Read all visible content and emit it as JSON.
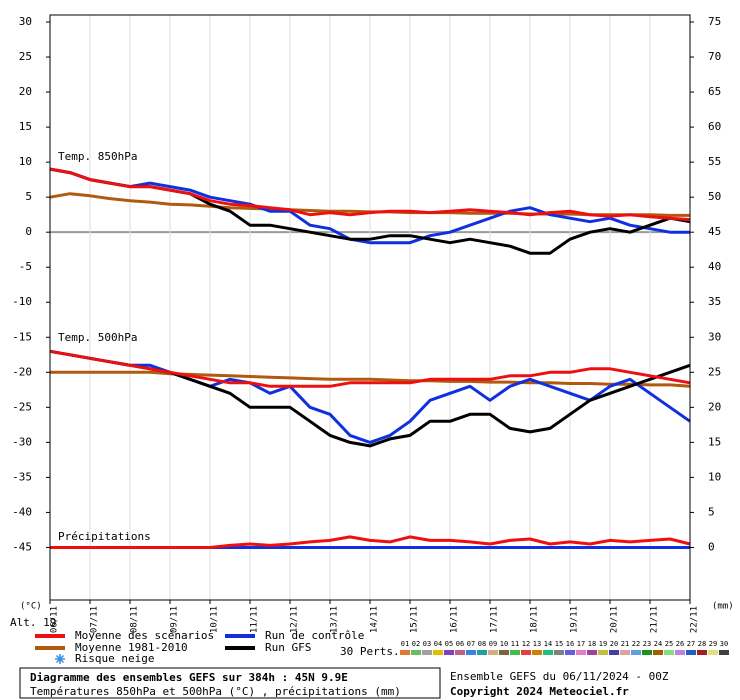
{
  "chart_data": {
    "type": "line",
    "axis_unit_left": "(°C)",
    "axis_unit_right": "(mm)",
    "altitude": "Alt. 19",
    "annotations": [
      "Temp. 850hPa",
      "Temp. 500hPa",
      "Précipitations"
    ],
    "xlim": [
      0,
      384
    ],
    "xticks": [
      {
        "value": 0,
        "label": "06/11"
      },
      {
        "value": 24,
        "label": "07/11"
      },
      {
        "value": 48,
        "label": "08/11"
      },
      {
        "value": 72,
        "label": "09/11"
      },
      {
        "value": 96,
        "label": "10/11"
      },
      {
        "value": 120,
        "label": "11/11"
      },
      {
        "value": 144,
        "label": "12/11"
      },
      {
        "value": 168,
        "label": "13/11"
      },
      {
        "value": 192,
        "label": "14/11"
      },
      {
        "value": 216,
        "label": "15/11"
      },
      {
        "value": 240,
        "label": "16/11"
      },
      {
        "value": 264,
        "label": "17/11"
      },
      {
        "value": 288,
        "label": "18/11"
      },
      {
        "value": 312,
        "label": "19/11"
      },
      {
        "value": 336,
        "label": "20/11"
      },
      {
        "value": 360,
        "label": "21/11"
      },
      {
        "value": 384,
        "label": "22/11"
      }
    ],
    "ylim": [
      -52.5,
      31
    ],
    "yticks": [
      30,
      25,
      20,
      15,
      10,
      5,
      0,
      -5,
      -10,
      -15,
      -20,
      -25,
      -30,
      -35,
      -40,
      -45
    ],
    "y2lim": [
      -7.5,
      76
    ],
    "y2ticks": [
      75,
      70,
      65,
      60,
      55,
      50,
      45,
      40,
      35,
      30,
      25,
      20,
      15,
      10,
      5,
      0
    ],
    "grid": true,
    "x": [
      0,
      12,
      24,
      36,
      48,
      60,
      72,
      84,
      96,
      108,
      120,
      132,
      144,
      156,
      168,
      180,
      192,
      204,
      216,
      228,
      240,
      252,
      264,
      276,
      288,
      300,
      312,
      324,
      336,
      348,
      360,
      372,
      384
    ],
    "series": [
      {
        "name": "Moyenne 1981-2010",
        "color": "#b05a10",
        "t850": [
          5,
          5.5,
          5.2,
          4.8,
          4.5,
          4.3,
          4,
          3.9,
          3.7,
          3.5,
          3.4,
          3.3,
          3.2,
          3.1,
          3,
          3,
          2.9,
          2.9,
          2.8,
          2.8,
          2.8,
          2.7,
          2.7,
          2.7,
          2.6,
          2.6,
          2.6,
          2.5,
          2.5,
          2.5,
          2.5,
          2.4,
          2.4
        ],
        "t500": [
          -20,
          -20,
          -20,
          -20,
          -20,
          -20,
          -20.2,
          -20.3,
          -20.4,
          -20.5,
          -20.6,
          -20.7,
          -20.8,
          -20.9,
          -21,
          -21,
          -21,
          -21.1,
          -21.2,
          -21.2,
          -21.3,
          -21.3,
          -21.4,
          -21.4,
          -21.5,
          -21.5,
          -21.6,
          -21.6,
          -21.7,
          -21.7,
          -21.8,
          -21.8,
          -22
        ]
      },
      {
        "name": "Run de contrôle",
        "color": "#1030e0",
        "t850": [
          9,
          8.5,
          7.5,
          7,
          6.5,
          7,
          6.5,
          6,
          5,
          4.5,
          4,
          3,
          3,
          1,
          0.5,
          -1,
          -1.5,
          -1.5,
          -1.5,
          -0.5,
          0,
          1,
          2,
          3,
          3.5,
          2.5,
          2,
          1.5,
          2,
          1,
          0.5,
          0,
          0
        ],
        "t500": [
          -17,
          -17.5,
          -18,
          -18.5,
          -19,
          -19,
          -20,
          -21,
          -22,
          -21,
          -21.5,
          -23,
          -22,
          -25,
          -26,
          -29,
          -30,
          -29,
          -27,
          -24,
          -23,
          -22,
          -24,
          -22,
          -21,
          -22,
          -23,
          -24,
          -22,
          -21,
          -23,
          -25,
          -27
        ],
        "precip": [
          0,
          0,
          0,
          0,
          0,
          0,
          0,
          0,
          0,
          0,
          0,
          0,
          0,
          0,
          0,
          0,
          0,
          0,
          0,
          0,
          0,
          0,
          0,
          0,
          0,
          0,
          0,
          0,
          0,
          0,
          0,
          0,
          0
        ]
      },
      {
        "name": "Run GFS",
        "color": "#000000",
        "t850": [
          9,
          8.5,
          7.5,
          7,
          6.5,
          6.5,
          6,
          5.5,
          4,
          3,
          1,
          1,
          0.5,
          0,
          -0.5,
          -1,
          -1,
          -0.5,
          -0.5,
          -1,
          -1.5,
          -1,
          -1.5,
          -2,
          -3,
          -3,
          -1,
          0,
          0.5,
          0,
          1,
          2,
          1.5
        ],
        "t500": [
          -17,
          -17.5,
          -18,
          -18.5,
          -19,
          -19.5,
          -20,
          -21,
          -22,
          -23,
          -25,
          -25,
          -25,
          -27,
          -29,
          -30,
          -30.5,
          -29.5,
          -29,
          -27,
          -27,
          -26,
          -26,
          -28,
          -28.5,
          -28,
          -26,
          -24,
          -23,
          -22,
          -21,
          -20,
          -19
        ]
      },
      {
        "name": "Moyenne des scénarios",
        "color": "#ee1010",
        "t850": [
          9,
          8.5,
          7.5,
          7,
          6.5,
          6.5,
          6,
          5.5,
          4.5,
          4,
          3.8,
          3.5,
          3.2,
          2.5,
          2.8,
          2.5,
          2.8,
          3,
          3,
          2.8,
          3,
          3.2,
          3,
          2.8,
          2.5,
          2.8,
          3,
          2.5,
          2.3,
          2.5,
          2.2,
          2,
          1.8
        ],
        "t500": [
          -17,
          -17.5,
          -18,
          -18.5,
          -19,
          -19.5,
          -20,
          -20.5,
          -21,
          -21.5,
          -21.5,
          -22,
          -22,
          -22,
          -22,
          -21.5,
          -21.5,
          -21.5,
          -21.5,
          -21,
          -21,
          -21,
          -21,
          -20.5,
          -20.5,
          -20,
          -20,
          -19.5,
          -19.5,
          -20,
          -20.5,
          -21,
          -21.5
        ],
        "precip": [
          0,
          0,
          0,
          0,
          0,
          0,
          0,
          0,
          0,
          0.3,
          0.5,
          0.3,
          0.5,
          0.8,
          1,
          1.5,
          1,
          0.8,
          1.5,
          1,
          1,
          0.8,
          0.5,
          1,
          1.2,
          0.5,
          0.8,
          0.5,
          1,
          0.8,
          1,
          1.2,
          0.5
        ]
      }
    ],
    "legend_snow": "Risque neige",
    "perturbations": {
      "label": "30 Perts.",
      "names": [
        "01",
        "02",
        "03",
        "04",
        "05",
        "06",
        "07",
        "08",
        "09",
        "10",
        "11",
        "12",
        "13",
        "14",
        "15",
        "16",
        "17",
        "18",
        "19",
        "20",
        "21",
        "22",
        "23",
        "24",
        "25",
        "26",
        "27",
        "28",
        "29",
        "30"
      ],
      "colors": [
        "#e07830",
        "#60c060",
        "#a0a0a0",
        "#e0c000",
        "#8040c0",
        "#c06080",
        "#4080e0",
        "#20a0a0",
        "#d0b080",
        "#806040",
        "#40c040",
        "#e04040",
        "#d08000",
        "#20c080",
        "#808080",
        "#6060e0",
        "#e080c0",
        "#a040a0",
        "#c0c040",
        "#4040a0",
        "#e0a0a0",
        "#60a0e0",
        "#209020",
        "#a06000",
        "#80e080",
        "#c080e0",
        "#2060c0",
        "#a02020",
        "#e0e080",
        "#404040"
      ]
    }
  },
  "footer": {
    "title": "Diagramme des ensembles GEFS sur 384h : 45N 9.9E",
    "subtitle": "Températures 850hPa et 500hPa (°C) , précipitations (mm)",
    "run": "Ensemble GEFS du 06/11/2024 - 00Z",
    "copyright": "Copyright 2024 Meteociel.fr"
  }
}
